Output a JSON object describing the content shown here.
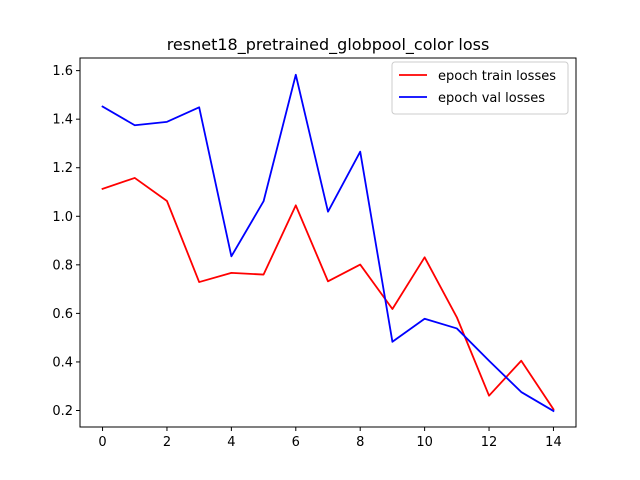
{
  "chart_data": {
    "type": "line",
    "title": "resnet18_pretrained_globpool_color loss",
    "xlabel": "",
    "ylabel": "",
    "x": [
      0,
      1,
      2,
      3,
      4,
      5,
      6,
      7,
      8,
      9,
      10,
      11,
      12,
      13,
      14
    ],
    "xlim": [
      -0.7,
      14.7
    ],
    "ylim": [
      0.132,
      1.652
    ],
    "xticks": [
      0,
      2,
      4,
      6,
      8,
      10,
      12,
      14
    ],
    "yticks": [
      0.2,
      0.4,
      0.6,
      0.8,
      1.0,
      1.2,
      1.4,
      1.6
    ],
    "ytick_labels": [
      "0.2",
      "0.4",
      "0.6",
      "0.8",
      "1.0",
      "1.2",
      "1.4",
      "1.6"
    ],
    "grid": false,
    "legend_position": "top-right",
    "series": [
      {
        "name": "epoch train losses",
        "color": "#ff0000",
        "values": [
          1.113,
          1.158,
          1.063,
          0.729,
          0.767,
          0.76,
          1.045,
          0.732,
          0.801,
          0.618,
          0.831,
          0.584,
          0.261,
          0.405,
          0.205
        ]
      },
      {
        "name": "epoch val losses",
        "color": "#0000ff",
        "values": [
          1.452,
          1.375,
          1.389,
          1.449,
          0.835,
          1.062,
          1.583,
          1.019,
          1.266,
          0.483,
          0.578,
          0.538,
          0.405,
          0.276,
          0.198
        ]
      }
    ]
  }
}
